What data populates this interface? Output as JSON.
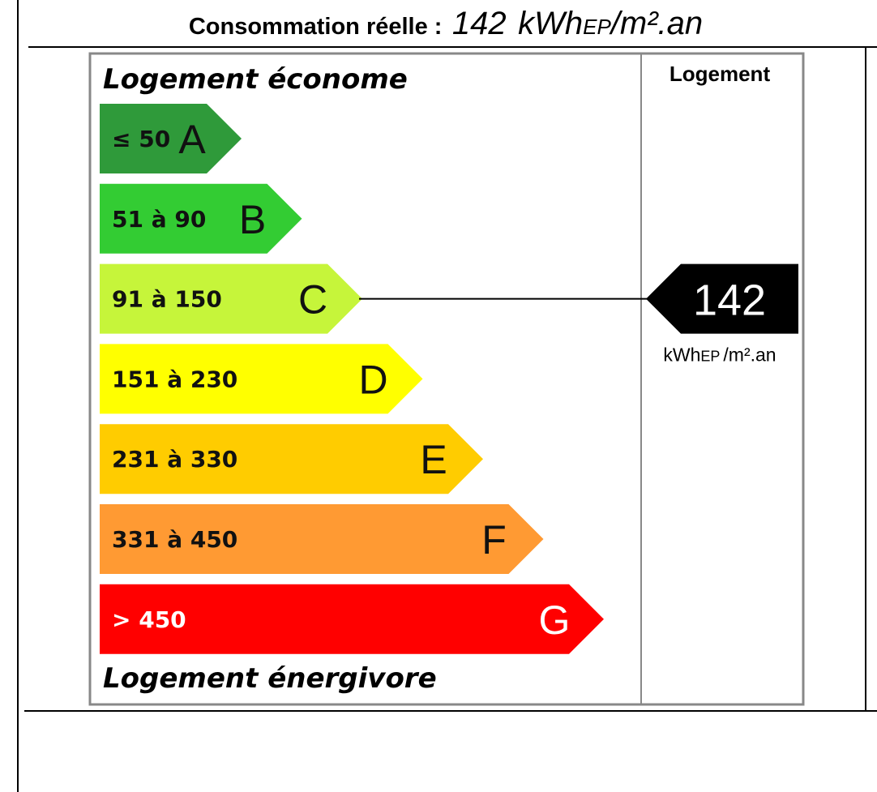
{
  "header": {
    "label": "Consommation réelle :",
    "value": "142",
    "unit": "kWh",
    "unit_sub": "EP",
    "unit_rest": "/m².an"
  },
  "label": {
    "top": "Logement économe",
    "bottom": "Logement énergivore",
    "column": "Logement",
    "classes": [
      {
        "range": "≤ 50",
        "letter": "A",
        "color": "#2f9a3a"
      },
      {
        "range": "51 à 90",
        "letter": "B",
        "color": "#33cc33"
      },
      {
        "range": "91 à 150",
        "letter": "C",
        "color": "#c6f53a"
      },
      {
        "range": "151 à 230",
        "letter": "D",
        "color": "#ffff00"
      },
      {
        "range": "231 à 330",
        "letter": "E",
        "color": "#ffcc00"
      },
      {
        "range": "331 à 450",
        "letter": "F",
        "color": "#ff9a33"
      },
      {
        "range": "> 450",
        "letter": "G",
        "color": "#ff0000"
      }
    ],
    "marker": {
      "value": "142",
      "unit": "kWh",
      "unit_sub": "EP",
      "unit_rest": "/m².an",
      "class_index": 2
    }
  }
}
